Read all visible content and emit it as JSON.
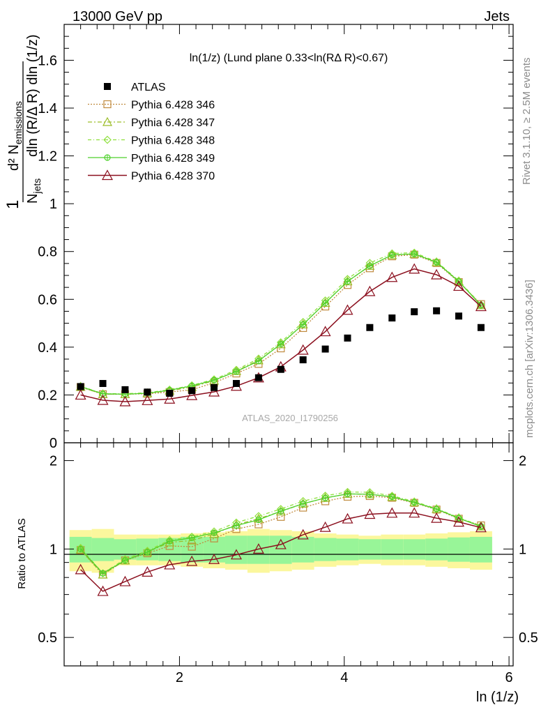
{
  "header": {
    "left": "13000 GeV pp",
    "right": "Jets"
  },
  "side_text": {
    "upper": "Rivet 3.1.10, ≥ 2.5M events",
    "lower": "mcplots.cern.ch [arXiv:1306.3436]"
  },
  "watermark": "ATLAS_2020_I1790256",
  "plot_title": "ln(1/z) (Lund plane 0.33<ln(RΔ R)<0.67)",
  "legend": [
    "ATLAS",
    "Pythia 6.428 346",
    "Pythia 6.428 347",
    "Pythia 6.428 348",
    "Pythia 6.428 349",
    "Pythia 6.428 370"
  ],
  "colors": {
    "p346": "#c08a3e",
    "p347": "#9cbd29",
    "p348": "#8ee03c",
    "p349": "#4ed12b",
    "p370": "#8b0f1e",
    "band_inner": "#98f598",
    "band_outer": "#fbf79d"
  },
  "chart_data": {
    "type": "line",
    "xlabel": "ln (1/z)",
    "ylabel": "1/N_jets d²N_emissions / dln(R/Δ R) dln(1/z)",
    "ratio_ylabel": "Ratio to ATLAS",
    "xlim": [
      0.6,
      6.05
    ],
    "ylim": [
      0,
      1.75
    ],
    "ratio_ylim": [
      0.4,
      2.3
    ],
    "x_ticks": [
      "2",
      "4",
      "6"
    ],
    "y_ticks": [
      "0",
      "0.2",
      "0.4",
      "0.6",
      "0.8",
      "1",
      "1.2",
      "1.4",
      "1.6"
    ],
    "ratio_y_ticks": [
      "0.5",
      "1",
      "2"
    ],
    "x": [
      0.8,
      1.07,
      1.34,
      1.61,
      1.88,
      2.15,
      2.42,
      2.69,
      2.96,
      3.23,
      3.5,
      3.77,
      4.04,
      4.31,
      4.58,
      4.85,
      5.12,
      5.39,
      5.66
    ],
    "data": {
      "name": "ATLAS",
      "values": [
        0.235,
        0.248,
        0.222,
        0.212,
        0.207,
        0.218,
        0.231,
        0.248,
        0.272,
        0.307,
        0.347,
        0.392,
        0.438,
        0.482,
        0.522,
        0.548,
        0.552,
        0.53,
        0.482
      ],
      "band_inner": [
        0.1,
        0.09,
        0.08,
        0.085,
        0.09,
        0.1,
        0.1,
        0.11,
        0.11,
        0.11,
        0.1,
        0.09,
        0.085,
        0.08,
        0.08,
        0.08,
        0.085,
        0.095,
        0.1
      ],
      "band_outer": [
        0.16,
        0.17,
        0.12,
        0.12,
        0.12,
        0.13,
        0.14,
        0.15,
        0.17,
        0.16,
        0.15,
        0.13,
        0.12,
        0.11,
        0.12,
        0.12,
        0.13,
        0.14,
        0.15
      ]
    },
    "series": [
      {
        "name": "Pythia 6.428 346",
        "values": [
          0.233,
          0.203,
          0.203,
          0.205,
          0.212,
          0.222,
          0.251,
          0.29,
          0.33,
          0.395,
          0.48,
          0.57,
          0.66,
          0.73,
          0.78,
          0.787,
          0.752,
          0.672,
          0.58
        ]
      },
      {
        "name": "Pythia 6.428 347",
        "values": [
          0.234,
          0.203,
          0.203,
          0.207,
          0.218,
          0.233,
          0.26,
          0.3,
          0.345,
          0.412,
          0.495,
          0.585,
          0.675,
          0.74,
          0.785,
          0.79,
          0.755,
          0.675,
          0.575
        ]
      },
      {
        "name": "Pythia 6.428 348",
        "values": [
          0.237,
          0.205,
          0.205,
          0.209,
          0.222,
          0.24,
          0.265,
          0.305,
          0.352,
          0.42,
          0.505,
          0.595,
          0.685,
          0.752,
          0.792,
          0.795,
          0.758,
          0.678,
          0.578
        ]
      },
      {
        "name": "Pythia 6.428 349",
        "values": [
          0.235,
          0.205,
          0.203,
          0.207,
          0.22,
          0.238,
          0.262,
          0.298,
          0.342,
          0.413,
          0.495,
          0.585,
          0.675,
          0.74,
          0.786,
          0.79,
          0.755,
          0.675,
          0.575
        ]
      },
      {
        "name": "Pythia 6.428 370",
        "values": [
          0.2,
          0.178,
          0.172,
          0.177,
          0.183,
          0.198,
          0.213,
          0.237,
          0.272,
          0.318,
          0.388,
          0.465,
          0.555,
          0.633,
          0.692,
          0.727,
          0.703,
          0.655,
          0.57
        ]
      }
    ]
  }
}
